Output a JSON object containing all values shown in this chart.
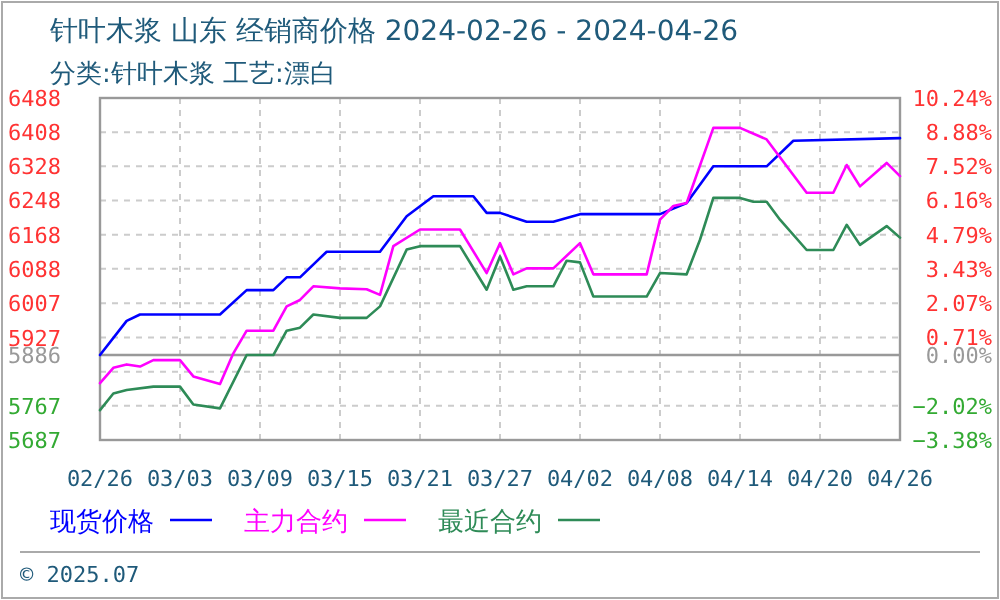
{
  "chart_data": {
    "type": "line",
    "title": "针叶木浆 山东 经销商价格 2024-02-26 - 2024-04-26",
    "subtitle": "分类:针叶木浆 工艺:漂白",
    "xlim": [
      "2024-02-26",
      "2024-04-26"
    ],
    "xticks": [
      {
        "value": "2024-02-26",
        "label": "02/26"
      },
      {
        "value": "2024-03-03",
        "label": "03/03"
      },
      {
        "value": "2024-03-09",
        "label": "03/09"
      },
      {
        "value": "2024-03-15",
        "label": "03/15"
      },
      {
        "value": "2024-03-21",
        "label": "03/21"
      },
      {
        "value": "2024-03-27",
        "label": "03/27"
      },
      {
        "value": "2024-04-02",
        "label": "04/02"
      },
      {
        "value": "2024-04-08",
        "label": "04/08"
      },
      {
        "value": "2024-04-14",
        "label": "04/14"
      },
      {
        "value": "2024-04-20",
        "label": "04/20"
      },
      {
        "value": "2024-04-26",
        "label": "04/26"
      }
    ],
    "ylim": [
      5687,
      6488
    ],
    "yticks": [
      5687,
      5767,
      {
        "value": 5847,
        "label": null
      },
      5927,
      6007,
      6088,
      6168,
      6248,
      6328,
      6408,
      6488
    ],
    "y2lim": [
      -3.38,
      10.24
    ],
    "y2ticks": [
      {
        "value": -3.38,
        "label": "−3.38%"
      },
      {
        "value": -2.02,
        "label": "−2.02%"
      },
      {
        "value": -0.65,
        "label": null
      },
      {
        "value": 0,
        "label": "0.00%"
      },
      {
        "value": 0.71,
        "label": "0.71%"
      },
      {
        "value": 2.07,
        "label": "2.07%"
      },
      {
        "value": 3.43,
        "label": "3.43%"
      },
      {
        "value": 4.79,
        "label": "4.79%"
      },
      {
        "value": 6.16,
        "label": "6.16%"
      },
      {
        "value": 7.52,
        "label": "7.52%"
      },
      {
        "value": 8.88,
        "label": "8.88%"
      },
      {
        "value": 10.24,
        "label": "10.24%"
      }
    ],
    "ref_lines": [
      {
        "axis": "y",
        "value": 5886,
        "label": "5886",
        "color": "#999999"
      }
    ],
    "grid": true,
    "legend": "bottom",
    "marker": "none",
    "line_style": "solid",
    "annotations": [
      "© 2025.07"
    ],
    "series": [
      {
        "name": "现货价格",
        "color": "#0000ff",
        "x": [
          "2024-02-26",
          "2024-02-28",
          "2024-02-29",
          "2024-03-06",
          "2024-03-08",
          "2024-03-10",
          "2024-03-11",
          "2024-03-12",
          "2024-03-14",
          "2024-03-18",
          "2024-03-20",
          "2024-03-22",
          "2024-03-25",
          "2024-03-26",
          "2024-03-27",
          "2024-03-29",
          "2024-03-31",
          "2024-04-02",
          "2024-04-08",
          "2024-04-10",
          "2024-04-12",
          "2024-04-16",
          "2024-04-18",
          "2024-04-26"
        ],
        "values": [
          5886,
          5966,
          5981,
          5981,
          6038,
          6038,
          6068,
          6068,
          6128,
          6128,
          6211,
          6258,
          6258,
          6219,
          6219,
          6198,
          6198,
          6216,
          6216,
          6242,
          6328,
          6328,
          6388,
          6394
        ]
      },
      {
        "name": "主力合约",
        "color": "#ff00ff",
        "x": [
          "2024-02-26",
          "2024-02-27",
          "2024-02-28",
          "2024-02-29",
          "2024-03-01",
          "2024-03-03",
          "2024-03-04",
          "2024-03-06",
          "2024-03-07",
          "2024-03-08",
          "2024-03-10",
          "2024-03-11",
          "2024-03-12",
          "2024-03-13",
          "2024-03-15",
          "2024-03-17",
          "2024-03-18",
          "2024-03-19",
          "2024-03-21",
          "2024-03-24",
          "2024-03-26",
          "2024-03-27",
          "2024-03-28",
          "2024-03-29",
          "2024-03-31",
          "2024-04-02",
          "2024-04-03",
          "2024-04-07",
          "2024-04-08",
          "2024-04-09",
          "2024-04-10",
          "2024-04-12",
          "2024-04-14",
          "2024-04-16",
          "2024-04-19",
          "2024-04-21",
          "2024-04-22",
          "2024-04-23",
          "2024-04-25",
          "2024-04-26"
        ],
        "values": [
          5820,
          5856,
          5864,
          5859,
          5874,
          5874,
          5836,
          5818,
          5890,
          5943,
          5943,
          6000,
          6015,
          6047,
          6042,
          6040,
          6027,
          6141,
          6180,
          6180,
          6078,
          6148,
          6075,
          6089,
          6089,
          6148,
          6075,
          6075,
          6203,
          6235,
          6242,
          6418,
          6418,
          6391,
          6266,
          6266,
          6331,
          6281,
          6336,
          6305
        ]
      },
      {
        "name": "最近合约",
        "color": "#2e8b57",
        "x": [
          "2024-02-26",
          "2024-02-27",
          "2024-02-28",
          "2024-03-01",
          "2024-03-03",
          "2024-03-04",
          "2024-03-06",
          "2024-03-08",
          "2024-03-10",
          "2024-03-11",
          "2024-03-12",
          "2024-03-13",
          "2024-03-15",
          "2024-03-17",
          "2024-03-18",
          "2024-03-20",
          "2024-03-21",
          "2024-03-24",
          "2024-03-26",
          "2024-03-27",
          "2024-03-28",
          "2024-03-29",
          "2024-03-31",
          "2024-04-01",
          "2024-04-02",
          "2024-04-03",
          "2024-04-07",
          "2024-04-08",
          "2024-04-10",
          "2024-04-11",
          "2024-04-12",
          "2024-04-14",
          "2024-04-15",
          "2024-04-16",
          "2024-04-17",
          "2024-04-19",
          "2024-04-21",
          "2024-04-22",
          "2024-04-23",
          "2024-04-25",
          "2024-04-26"
        ],
        "values": [
          5757,
          5796,
          5804,
          5812,
          5812,
          5770,
          5761,
          5886,
          5886,
          5943,
          5950,
          5981,
          5973,
          5973,
          6000,
          6133,
          6141,
          6141,
          6039,
          6117,
          6039,
          6047,
          6047,
          6107,
          6103,
          6023,
          6023,
          6078,
          6075,
          6156,
          6254,
          6254,
          6245,
          6245,
          6203,
          6132,
          6132,
          6191,
          6144,
          6188,
          6161
        ]
      }
    ]
  }
}
